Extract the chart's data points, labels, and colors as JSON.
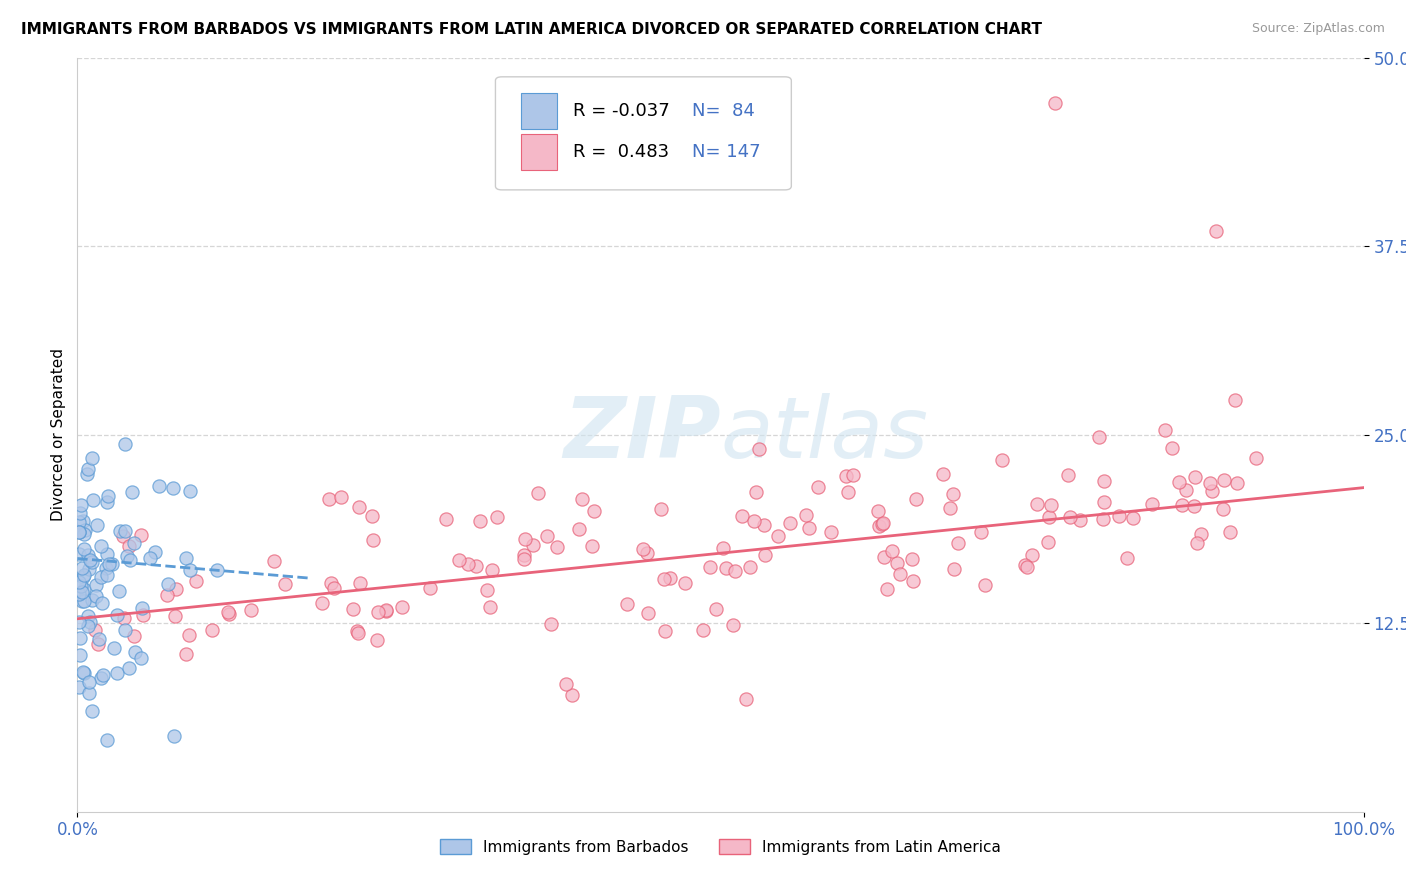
{
  "title": "IMMIGRANTS FROM BARBADOS VS IMMIGRANTS FROM LATIN AMERICA DIVORCED OR SEPARATED CORRELATION CHART",
  "source": "Source: ZipAtlas.com",
  "ylabel": "Divorced or Separated",
  "legend_label_1": "Immigrants from Barbados",
  "legend_label_2": "Immigrants from Latin America",
  "R1": -0.037,
  "N1": 84,
  "R2": 0.483,
  "N2": 147,
  "color1": "#aec6e8",
  "color2": "#f5b8c8",
  "line1_color": "#5b9bd5",
  "line2_color": "#e8637a",
  "xlim": [
    0.0,
    1.0
  ],
  "ylim": [
    0.0,
    0.5
  ],
  "x_ticks": [
    0.0,
    1.0
  ],
  "x_tick_labels": [
    "0.0%",
    "100.0%"
  ],
  "y_ticks": [
    0.125,
    0.25,
    0.375,
    0.5
  ],
  "y_tick_labels": [
    "12.5%",
    "25.0%",
    "37.5%",
    "50.0%"
  ],
  "grid_color": "#cccccc",
  "background_color": "#ffffff",
  "watermark_zip": "ZIP",
  "watermark_atlas": "atlas",
  "tick_color": "#4472c4",
  "title_fontsize": 11,
  "axis_fontsize": 11,
  "tick_fontsize": 12,
  "legend_fontsize": 13,
  "seed": 42
}
